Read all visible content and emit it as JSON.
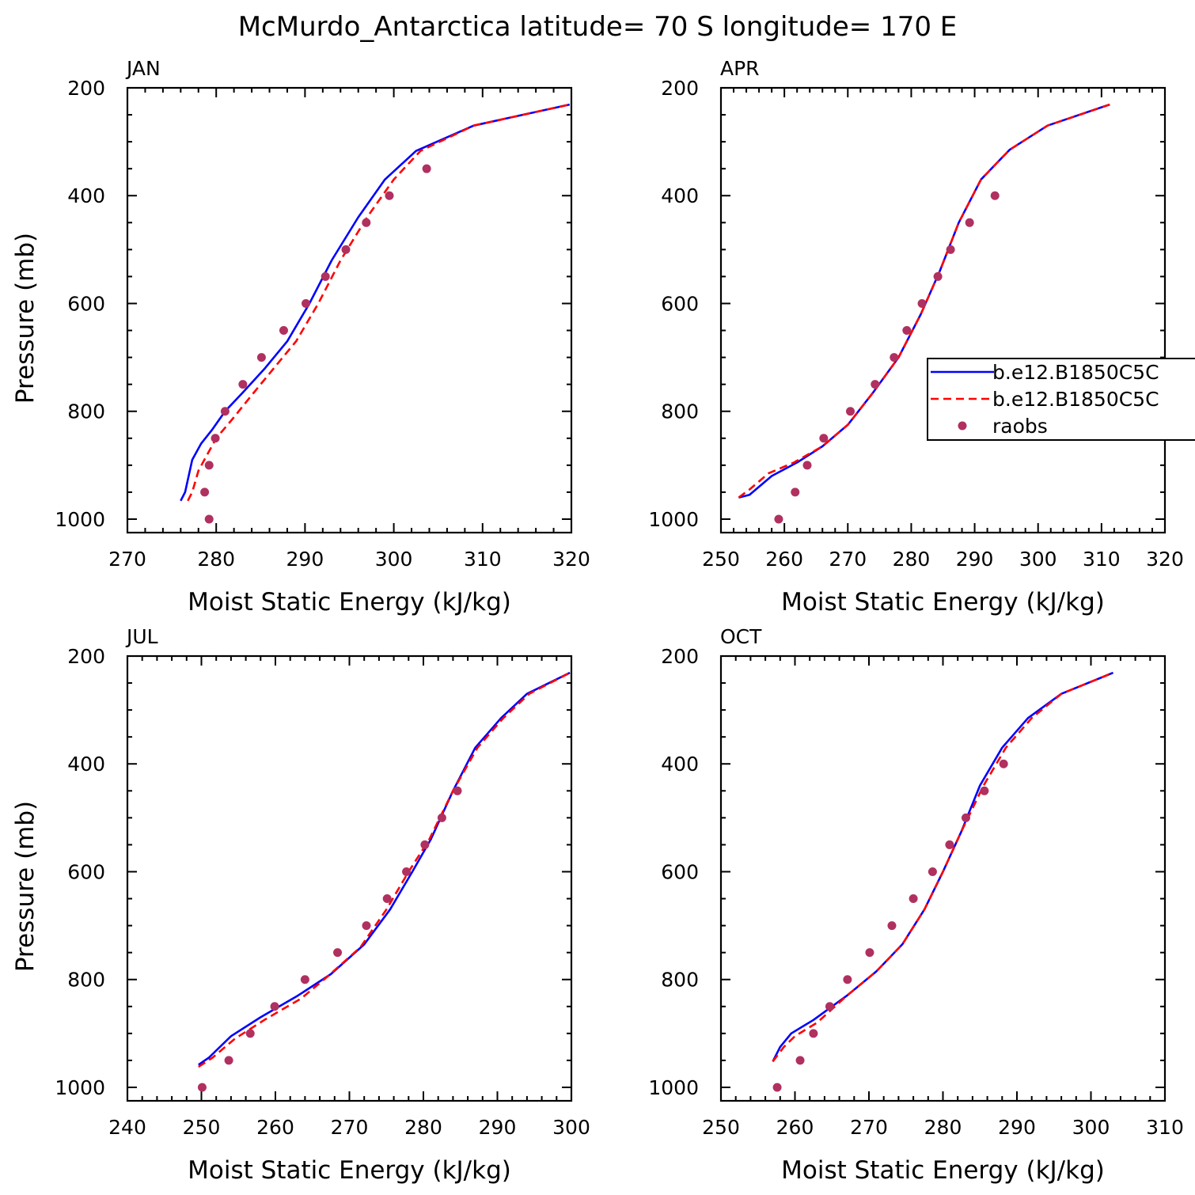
{
  "figure": {
    "title": "McMurdo_Antarctica  latitude= 70 S longitude= 170 E"
  },
  "legend": {
    "entries": [
      {
        "label": "b.e12.B1850C5C",
        "style": "solid",
        "color": "#0000ff"
      },
      {
        "label": "b.e12.B1850C5C",
        "style": "dashed",
        "color": "#ff0000"
      },
      {
        "label": "raobs",
        "style": "marker",
        "color": "#b03060"
      }
    ]
  },
  "chart_data": [
    {
      "type": "line",
      "panel": "JAN",
      "xlabel": "Moist Static Energy (kJ/kg)",
      "ylabel": "Pressure (mb)",
      "xlim": [
        270,
        320
      ],
      "ylim": [
        1025,
        200
      ],
      "xticks": [
        "270",
        "280",
        "290",
        "300",
        "310",
        "320"
      ],
      "yticks": [
        "200",
        "400",
        "600",
        "800",
        "1000"
      ],
      "series": [
        {
          "style": "solid",
          "color": "#0000ff",
          "x": [
            276.0,
            276.5,
            277.3,
            278.3,
            279.5,
            281.0,
            283.0,
            285.5,
            288.0,
            290.5,
            293.0,
            296.0,
            299.0,
            302.5,
            309.0,
            319.8
          ],
          "y": [
            966,
            950,
            890,
            860,
            835,
            800,
            765,
            720,
            670,
            600,
            520,
            440,
            370,
            317,
            270,
            231
          ]
        },
        {
          "style": "dashed",
          "color": "#ff0000",
          "x": [
            276.8,
            277.3,
            278.0,
            279.0,
            280.0,
            281.8,
            284.0,
            286.5,
            289.0,
            291.5,
            294.0,
            297.0,
            300.0,
            303.0,
            309.0,
            319.8
          ],
          "y": [
            966,
            950,
            910,
            880,
            850,
            815,
            770,
            720,
            670,
            600,
            520,
            440,
            370,
            317,
            270,
            231
          ]
        },
        {
          "style": "marker",
          "color": "#b03060",
          "x": [
            279.2,
            278.7,
            279.2,
            279.9,
            281.0,
            283.0,
            285.1,
            287.6,
            290.1,
            292.3,
            294.6,
            296.9,
            299.5,
            303.7
          ],
          "y": [
            1000,
            950,
            900,
            850,
            800,
            750,
            700,
            650,
            600,
            550,
            500,
            450,
            400,
            350
          ]
        }
      ]
    },
    {
      "type": "line",
      "panel": "APR",
      "xlabel": "Moist Static Energy (kJ/kg)",
      "ylabel": "",
      "xlim": [
        250,
        320
      ],
      "ylim": [
        1025,
        200
      ],
      "xticks": [
        "250",
        "260",
        "270",
        "280",
        "290",
        "300",
        "310",
        "320"
      ],
      "yticks": [
        "200",
        "400",
        "600",
        "800",
        "1000"
      ],
      "series": [
        {
          "style": "solid",
          "color": "#0000ff",
          "x": [
            252.8,
            254.5,
            258.0,
            262.0,
            266.0,
            270.0,
            274.0,
            278.0,
            281.5,
            284.5,
            287.5,
            291.0,
            295.5,
            301.5,
            311.3
          ],
          "y": [
            960,
            955,
            920,
            895,
            865,
            825,
            765,
            700,
            620,
            540,
            450,
            370,
            315,
            270,
            231
          ]
        },
        {
          "style": "dashed",
          "color": "#ff0000",
          "x": [
            252.8,
            254.5,
            257.5,
            261.5,
            266.0,
            270.0,
            274.0,
            278.0,
            281.5,
            284.5,
            287.5,
            291.0,
            295.5,
            301.5,
            311.3
          ],
          "y": [
            960,
            945,
            915,
            895,
            865,
            825,
            765,
            700,
            620,
            540,
            450,
            370,
            315,
            270,
            231
          ]
        },
        {
          "style": "marker",
          "color": "#b03060",
          "x": [
            259.1,
            261.7,
            263.6,
            266.2,
            270.4,
            274.3,
            277.3,
            279.3,
            281.7,
            284.2,
            286.2,
            289.2,
            293.2
          ],
          "y": [
            1000,
            950,
            900,
            850,
            800,
            750,
            700,
            650,
            600,
            550,
            500,
            450,
            400
          ]
        }
      ]
    },
    {
      "type": "line",
      "panel": "JUL",
      "xlabel": "Moist Static Energy (kJ/kg)",
      "ylabel": "Pressure (mb)",
      "xlim": [
        240,
        300
      ],
      "ylim": [
        1025,
        200
      ],
      "xticks": [
        "240",
        "250",
        "260",
        "270",
        "280",
        "290",
        "300"
      ],
      "yticks": [
        "200",
        "400",
        "600",
        "800",
        "1000"
      ],
      "series": [
        {
          "style": "solid",
          "color": "#0000ff",
          "x": [
            249.6,
            251.0,
            254.0,
            258.0,
            263.0,
            267.5,
            272.0,
            275.5,
            278.5,
            281.0,
            284.0,
            287.0,
            290.5,
            294.0,
            299.8
          ],
          "y": [
            958,
            945,
            905,
            870,
            830,
            790,
            735,
            670,
            600,
            540,
            450,
            370,
            315,
            270,
            231
          ]
        },
        {
          "style": "dashed",
          "color": "#ff0000",
          "x": [
            249.6,
            251.5,
            254.5,
            258.5,
            263.5,
            267.0,
            271.5,
            275.0,
            278.0,
            280.8,
            284.0,
            287.3,
            290.8,
            294.3,
            299.8
          ],
          "y": [
            962,
            945,
            910,
            875,
            835,
            795,
            740,
            670,
            600,
            540,
            450,
            370,
            315,
            270,
            231
          ]
        },
        {
          "style": "marker",
          "color": "#b03060",
          "x": [
            250.1,
            253.7,
            256.6,
            259.9,
            264.0,
            268.4,
            272.3,
            275.1,
            277.7,
            280.2,
            282.5,
            284.6
          ],
          "y": [
            1000,
            950,
            900,
            850,
            800,
            750,
            700,
            650,
            600,
            550,
            500,
            450
          ]
        }
      ]
    },
    {
      "type": "line",
      "panel": "OCT",
      "xlabel": "Moist Static Energy (kJ/kg)",
      "ylabel": "",
      "xlim": [
        250,
        310
      ],
      "ylim": [
        1025,
        200
      ],
      "xticks": [
        "250",
        "260",
        "270",
        "280",
        "290",
        "300",
        "310"
      ],
      "yticks": [
        "200",
        "400",
        "600",
        "800",
        "1000"
      ],
      "series": [
        {
          "style": "solid",
          "color": "#0000ff",
          "x": [
            257.0,
            258.0,
            259.5,
            262.5,
            267.0,
            271.0,
            274.5,
            277.5,
            280.0,
            282.5,
            285.0,
            288.0,
            291.5,
            296.0,
            303.0
          ],
          "y": [
            952,
            925,
            900,
            875,
            830,
            785,
            735,
            670,
            600,
            525,
            440,
            370,
            315,
            270,
            231
          ]
        },
        {
          "style": "dashed",
          "color": "#ff0000",
          "x": [
            257.0,
            258.5,
            260.0,
            263.0,
            267.0,
            271.0,
            274.5,
            277.5,
            280.0,
            282.5,
            285.5,
            288.5,
            292.0,
            296.0,
            303.0
          ],
          "y": [
            952,
            925,
            905,
            880,
            830,
            785,
            735,
            670,
            600,
            525,
            440,
            370,
            315,
            270,
            231
          ]
        },
        {
          "style": "marker",
          "color": "#b03060",
          "x": [
            257.6,
            260.7,
            262.5,
            264.7,
            267.1,
            270.1,
            273.1,
            276.0,
            278.6,
            280.9,
            283.1,
            285.6,
            288.2
          ],
          "y": [
            1000,
            950,
            900,
            850,
            800,
            750,
            700,
            650,
            600,
            550,
            500,
            450,
            400
          ]
        }
      ]
    }
  ]
}
